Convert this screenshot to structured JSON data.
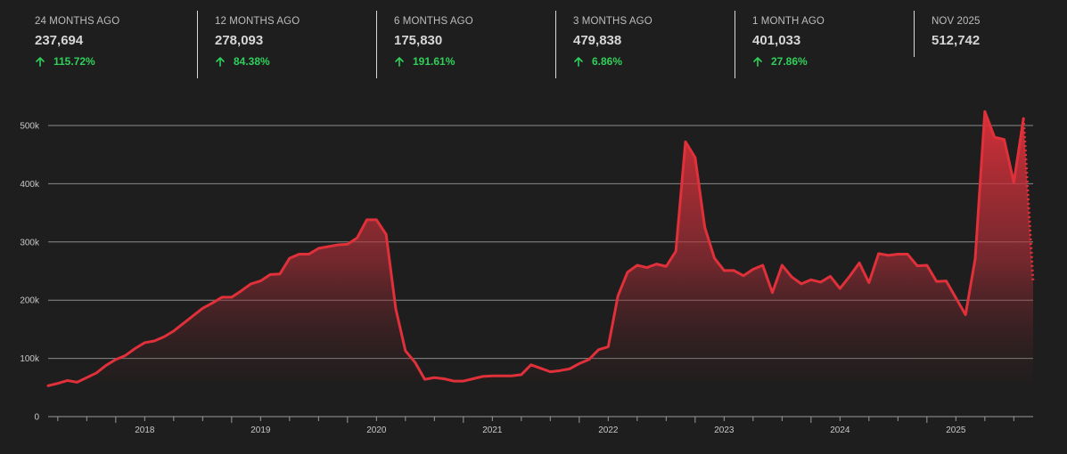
{
  "stats": [
    {
      "label": "24 MONTHS AGO",
      "value": "237,694",
      "change": "115.72%"
    },
    {
      "label": "12 MONTHS AGO",
      "value": "278,093",
      "change": "84.38%"
    },
    {
      "label": "6 MONTHS AGO",
      "value": "175,830",
      "change": "191.61%"
    },
    {
      "label": "3 MONTHS AGO",
      "value": "479,838",
      "change": "6.86%"
    },
    {
      "label": "1 MONTH AGO",
      "value": "401,033",
      "change": "27.86%"
    },
    {
      "label": "NOV 2025",
      "value": "512,742",
      "change": null
    }
  ],
  "colors": {
    "background": "#1e1e1e",
    "line": "#e0303a",
    "positive": "#2fd05a",
    "grid": "#8a8a8a"
  },
  "chart_data": {
    "type": "area",
    "x_start": "2017-06",
    "x_unit": "month",
    "ylim": [
      0,
      500000
    ],
    "yticks": [
      0,
      100000,
      200000,
      300000,
      400000,
      500000
    ],
    "ytick_labels": [
      "0",
      "100k",
      "200k",
      "300k",
      "400k",
      "500k"
    ],
    "xtick_labels": [
      "2018",
      "2019",
      "2020",
      "2021",
      "2022",
      "2023",
      "2024",
      "2025"
    ],
    "grid": true,
    "legend": "none",
    "last_point_dotted": true,
    "values": [
      53000,
      57000,
      62000,
      59000,
      67000,
      75000,
      88000,
      98000,
      105000,
      117000,
      127000,
      130000,
      137000,
      147000,
      160000,
      173000,
      186000,
      195000,
      205000,
      205000,
      216000,
      228000,
      233000,
      244000,
      245000,
      272000,
      279000,
      279000,
      289000,
      292000,
      295000,
      296000,
      307000,
      338000,
      338000,
      313000,
      185000,
      113000,
      93000,
      64000,
      67000,
      65000,
      61000,
      61000,
      65000,
      69000,
      70000,
      70000,
      70000,
      72000,
      89000,
      83000,
      77000,
      79000,
      82000,
      91000,
      98000,
      115000,
      120000,
      207000,
      248000,
      260000,
      256000,
      262000,
      258000,
      284000,
      472000,
      445000,
      325000,
      272000,
      251000,
      251000,
      242000,
      253000,
      260000,
      213000,
      260000,
      240000,
      228000,
      235000,
      231000,
      241000,
      220000,
      241000,
      264000,
      230000,
      280000,
      277000,
      279000,
      279000,
      259000,
      260000,
      232000,
      233000,
      204000,
      175000,
      271000,
      524000,
      480000,
      476000,
      402000,
      512000,
      230000
    ]
  }
}
